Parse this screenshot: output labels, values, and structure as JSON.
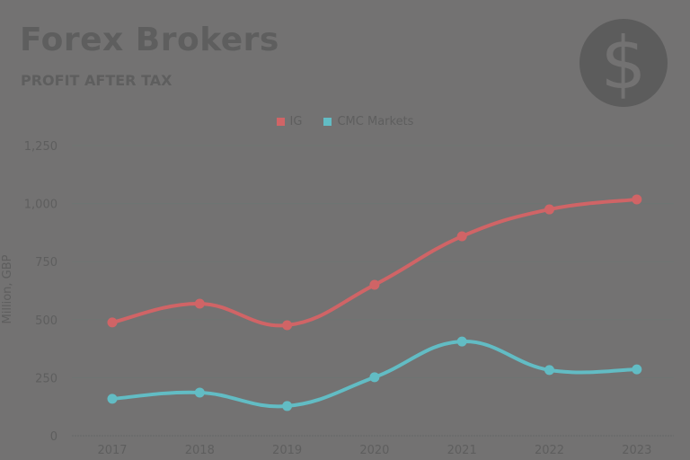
{
  "header": {
    "title": "Forex Brokers",
    "subtitle": "PROFIT AFTER TAX",
    "icon": "dollar-sign-icon"
  },
  "legend": [
    {
      "label": "IG",
      "color": "#d06466"
    },
    {
      "label": "CMC Markets",
      "color": "#62bcc4"
    }
  ],
  "chart_data": {
    "type": "line",
    "title": "Forex Brokers",
    "subtitle": "PROFIT AFTER TAX",
    "xlabel": "",
    "ylabel": "Million, GBP",
    "categories": [
      "2017",
      "2018",
      "2019",
      "2020",
      "2021",
      "2022",
      "2023"
    ],
    "series": [
      {
        "name": "IG",
        "color": "#d06466",
        "values": [
          488,
          569,
          476,
          650,
          859,
          975,
          1018
        ]
      },
      {
        "name": "CMC Markets",
        "color": "#62bcc4",
        "values": [
          159,
          186,
          128,
          252,
          406,
          283,
          286
        ]
      }
    ],
    "ylim": [
      0,
      1250
    ],
    "yticks": [
      "0",
      "250",
      "500",
      "750",
      "1,000",
      "1,250"
    ],
    "grid": true,
    "legend_position": "top",
    "smooth": true
  }
}
